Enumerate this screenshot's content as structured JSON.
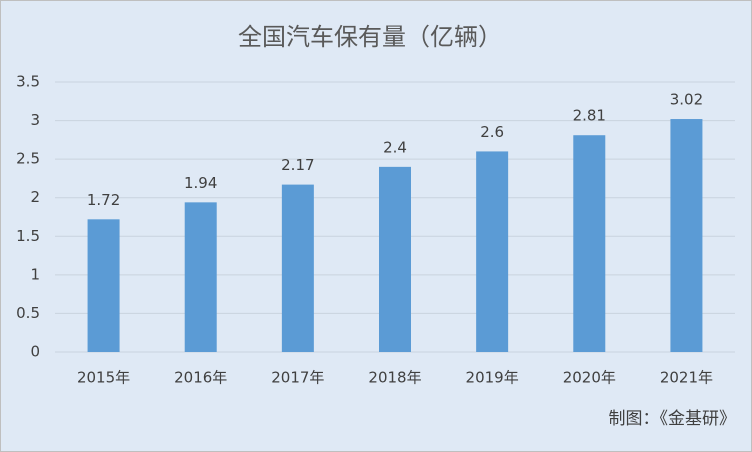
{
  "chart_data": {
    "type": "bar",
    "title": "全国汽车保有量（亿辆）",
    "categories": [
      "2015年",
      "2016年",
      "2017年",
      "2018年",
      "2019年",
      "2020年",
      "2021年"
    ],
    "values": [
      1.72,
      1.94,
      2.17,
      2.4,
      2.6,
      2.81,
      3.02
    ],
    "color": "#5b9bd5",
    "ylim": [
      0,
      3.5
    ],
    "yticks": [
      0,
      0.5,
      1,
      1.5,
      2,
      2.5,
      3,
      3.5
    ],
    "grid": true,
    "annotation": "制图：《金基研》"
  }
}
